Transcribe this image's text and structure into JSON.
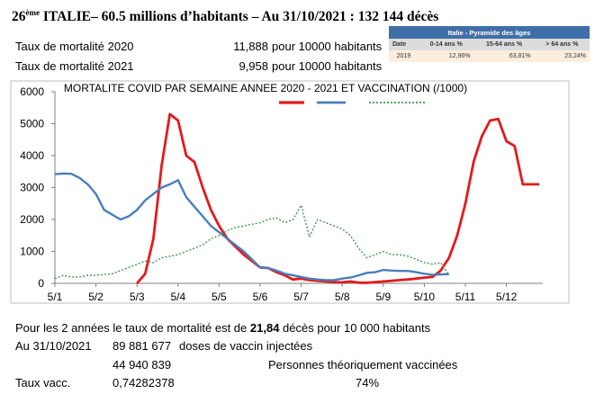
{
  "header": {
    "rank": "26",
    "rank_sup": "ème",
    "title": " ITALIE– 60.5 millions d’habitants – Au 31/10/2021 : 132 144 décès"
  },
  "rates": [
    {
      "label": "Taux de mortalité 2020",
      "value": "11,888",
      "unit": "pour 10000 habitants"
    },
    {
      "label": "Taux de mortalité 2021",
      "value": "9,958",
      "unit": "pour 10000 habitants"
    }
  ],
  "pyramid": {
    "title": "Italie - Pyramide des âges",
    "columns": [
      "Date",
      "0-14 ans %",
      "15-64 ans %",
      "> 64 ans %"
    ],
    "row": [
      "2019",
      "12,96%",
      "63,81%",
      "23,24%"
    ]
  },
  "chart_data": {
    "type": "line",
    "title": "MORTALITE COVID PAR SEMAINE ANNEE 2020 - 2021 ET VACCINATION (/1000)",
    "xlabel": "",
    "ylabel": "",
    "ylim": [
      0,
      6000
    ],
    "yticks": [
      "0",
      "1000",
      "2000",
      "3000",
      "4000",
      "5000",
      "6000"
    ],
    "xticks": [
      "5/1",
      "5/2",
      "5/3",
      "5/4",
      "5/5",
      "5/6",
      "5/7",
      "5/8",
      "5/9",
      "5/10",
      "5/11",
      "5/12"
    ],
    "grid": false,
    "legend": "top-right (swatches only)",
    "colors": {
      "y2020": "#e31a1c",
      "y2021": "#4a7ebb",
      "vacc": "#3a9a4a"
    },
    "series": [
      {
        "key": "y2020",
        "x": [
          3.0,
          3.2,
          3.4,
          3.6,
          3.8,
          4.0,
          4.2,
          4.4,
          4.6,
          4.8,
          5.0,
          5.2,
          5.4,
          5.6,
          5.8,
          6.0,
          6.2,
          6.4,
          6.6,
          6.8,
          7.0,
          7.2,
          7.4,
          7.6,
          7.8,
          8.0,
          8.2,
          8.4,
          8.6,
          8.8,
          9.0,
          9.2,
          9.4,
          9.6,
          9.8,
          10.0,
          10.2,
          10.4,
          10.6,
          10.8,
          11.0,
          11.2,
          11.4,
          11.6,
          11.8,
          12.0,
          12.2,
          12.4,
          12.6,
          12.8
        ],
        "values": [
          0,
          300,
          1400,
          3700,
          5300,
          5100,
          4000,
          3800,
          3000,
          2300,
          1800,
          1400,
          1150,
          900,
          700,
          500,
          480,
          350,
          250,
          120,
          150,
          100,
          80,
          60,
          40,
          30,
          60,
          20,
          20,
          40,
          60,
          80,
          100,
          120,
          150,
          180,
          200,
          400,
          800,
          1500,
          2500,
          3800,
          4600,
          5100,
          5150,
          4450,
          4300,
          3100,
          3100,
          3100
        ]
      },
      {
        "key": "y2021",
        "x": [
          1.0,
          1.2,
          1.4,
          1.6,
          1.8,
          2.0,
          2.2,
          2.4,
          2.6,
          2.8,
          3.0,
          3.2,
          3.4,
          3.6,
          3.8,
          4.0,
          4.2,
          4.4,
          4.6,
          4.8,
          5.0,
          5.2,
          5.4,
          5.6,
          5.8,
          6.0,
          6.2,
          6.4,
          6.6,
          6.8,
          7.0,
          7.2,
          7.4,
          7.6,
          7.8,
          8.0,
          8.2,
          8.4,
          8.6,
          8.8,
          9.0,
          9.2,
          9.4,
          9.6,
          9.8,
          10.0,
          10.2,
          10.4,
          10.6
        ],
        "values": [
          3420,
          3440,
          3430,
          3300,
          3100,
          2800,
          2300,
          2150,
          2000,
          2100,
          2300,
          2600,
          2800,
          3000,
          3100,
          3230,
          2700,
          2400,
          2100,
          1800,
          1600,
          1400,
          1200,
          1000,
          750,
          500,
          480,
          400,
          300,
          250,
          200,
          150,
          120,
          100,
          100,
          150,
          180,
          250,
          330,
          350,
          420,
          400,
          390,
          390,
          350,
          300,
          270,
          280,
          290
        ]
      },
      {
        "key": "vacc",
        "x": [
          1.0,
          1.2,
          1.4,
          1.6,
          1.8,
          2.0,
          2.2,
          2.4,
          2.6,
          2.8,
          3.0,
          3.2,
          3.4,
          3.6,
          3.8,
          4.0,
          4.2,
          4.4,
          4.6,
          4.8,
          5.0,
          5.2,
          5.4,
          5.6,
          5.8,
          6.0,
          6.2,
          6.4,
          6.6,
          6.8,
          7.0,
          7.2,
          7.4,
          7.6,
          7.8,
          8.0,
          8.2,
          8.4,
          8.6,
          8.8,
          9.0,
          9.2,
          9.4,
          9.6,
          9.8,
          10.0,
          10.2,
          10.4,
          10.6
        ],
        "values": [
          150,
          250,
          200,
          200,
          250,
          250,
          280,
          300,
          400,
          500,
          600,
          700,
          650,
          800,
          850,
          900,
          1000,
          1100,
          1200,
          1400,
          1500,
          1650,
          1750,
          1800,
          1850,
          1900,
          2000,
          2050,
          1900,
          2000,
          2450,
          1450,
          2000,
          1900,
          1800,
          1700,
          1500,
          1100,
          800,
          900,
          1000,
          900,
          900,
          850,
          750,
          650,
          600,
          650,
          250
        ]
      }
    ]
  },
  "summary": {
    "prefix": "Pour les 2 années le taux de mortalité est de ",
    "bold": "21,84",
    "suffix": " décès pour 10 000 habitants",
    "date": "Au 31/10/2021",
    "doses": "89 881 677",
    "doses_label": "doses de vaccin injectées",
    "vaccinated": "44 940 839",
    "vaccinated_label": "Personnes théoriquement vaccinées",
    "taux_label": "Taux vacc.",
    "taux_value": "0,74282378",
    "taux_pct": "74%"
  }
}
